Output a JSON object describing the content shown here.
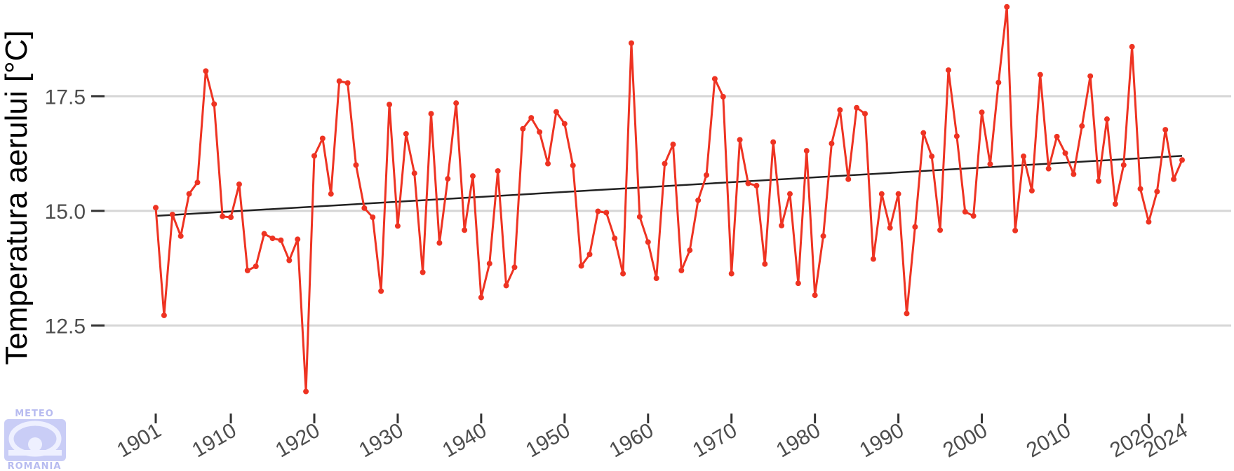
{
  "chart_data": {
    "type": "line",
    "title": "",
    "xlabel": "",
    "ylabel": "Temperatura aerului [°C]",
    "xlim": [
      1901,
      2024
    ],
    "ylim": [
      10.9,
      19.6
    ],
    "x_ticks": [
      1901,
      1910,
      1920,
      1930,
      1940,
      1950,
      1960,
      1970,
      1980,
      1990,
      2000,
      2010,
      2020,
      2024
    ],
    "y_ticks": [
      12.5,
      15.0,
      17.5
    ],
    "y_tick_labels": [
      "12.5",
      "15.0",
      "17.5"
    ],
    "grid": "horizontal",
    "legend": "none",
    "colors": {
      "series": "#ee3322",
      "trend": "#222222",
      "grid": "#d6d6d6"
    },
    "series": [
      {
        "x_start": 1901,
        "x_end": 2024,
        "values": [
          15.07,
          12.72,
          14.92,
          14.45,
          15.37,
          15.62,
          18.05,
          17.33,
          14.88,
          14.86,
          15.58,
          13.7,
          13.79,
          14.5,
          14.4,
          14.36,
          13.92,
          14.38,
          11.06,
          16.2,
          16.58,
          15.37,
          17.83,
          17.79,
          16.0,
          15.06,
          14.86,
          13.25,
          17.32,
          14.67,
          16.68,
          15.82,
          13.66,
          17.12,
          14.3,
          15.7,
          17.35,
          14.58,
          15.76,
          13.11,
          13.85,
          15.87,
          13.37,
          13.77,
          16.79,
          17.03,
          16.72,
          16.03,
          17.16,
          16.9,
          15.99,
          13.8,
          14.05,
          14.99,
          14.96,
          14.4,
          13.63,
          18.66,
          14.87,
          14.32,
          13.53,
          16.03,
          16.45,
          13.7,
          14.14,
          15.23,
          15.78,
          17.88,
          17.49,
          13.63,
          16.55,
          15.6,
          15.55,
          13.84,
          16.5,
          14.68,
          15.37,
          13.42,
          16.31,
          13.16,
          14.45,
          16.47,
          17.2,
          15.69,
          17.25,
          17.12,
          13.95,
          15.37,
          14.63,
          15.37,
          12.76,
          14.65,
          16.7,
          16.19,
          14.58,
          18.07,
          16.63,
          14.98,
          14.89,
          17.15,
          16.02,
          17.8,
          19.45,
          14.57,
          16.19,
          15.44,
          17.97,
          15.92,
          16.62,
          16.26,
          15.8,
          16.85,
          17.94,
          15.65,
          17.0,
          15.15,
          16.0,
          18.58,
          15.48,
          14.76,
          15.42,
          16.77,
          15.69,
          16.11
        ]
      }
    ],
    "trend": {
      "x": [
        1901,
        2024
      ],
      "y": [
        14.89,
        16.2
      ]
    }
  },
  "logo": {
    "top_text": "METEO",
    "bottom_text": "ROMANIA"
  }
}
